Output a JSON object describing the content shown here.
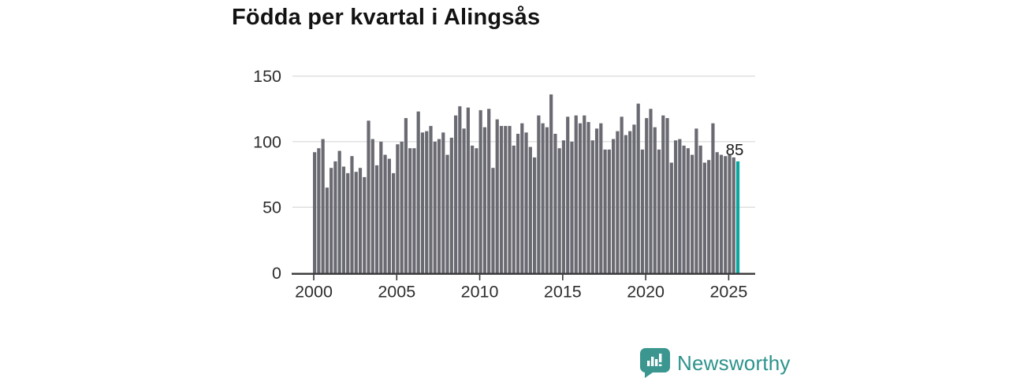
{
  "title": "Födda per kvartal i Alingsås",
  "annotation": {
    "last_value_label": "85"
  },
  "branding": {
    "name": "Newsworthy",
    "icon": "newsworthy-speech-bubble-chart-icon"
  },
  "colors": {
    "bar": "#6a6a72",
    "highlight": "#0aa7a0",
    "grid": "#dcdcdc",
    "axis": "#38383a",
    "tick_label": "#2e2e2e",
    "title": "#121212",
    "brand_bubble": "#3a968f",
    "brand_text": "#2d938c",
    "annotation_text": "#1a1a1a"
  },
  "chart_data": {
    "type": "bar",
    "title": "Födda per kvartal i Alingsås",
    "xlabel": "",
    "ylabel": "",
    "start_period": "2000-Q1",
    "end_period": "2025-Q3",
    "quarters_per_year": 4,
    "x_tick_years": [
      2000,
      2005,
      2010,
      2015,
      2020,
      2025
    ],
    "y_ticks": [
      0,
      50,
      100,
      150
    ],
    "ylim": [
      0,
      150
    ],
    "grid": "horizontal",
    "legend": "none",
    "highlight_last": true,
    "last_value_label": "85",
    "values": [
      92,
      95,
      102,
      65,
      80,
      85,
      93,
      81,
      76,
      89,
      77,
      80,
      73,
      116,
      102,
      82,
      100,
      90,
      87,
      76,
      98,
      100,
      118,
      95,
      95,
      123,
      107,
      108,
      112,
      100,
      102,
      107,
      90,
      103,
      120,
      127,
      110,
      126,
      97,
      95,
      124,
      111,
      125,
      80,
      117,
      112,
      112,
      112,
      97,
      106,
      114,
      107,
      96,
      88,
      120,
      114,
      111,
      136,
      106,
      95,
      101,
      119,
      100,
      120,
      114,
      120,
      115,
      101,
      110,
      114,
      94,
      94,
      102,
      108,
      119,
      105,
      108,
      113,
      129,
      94,
      118,
      125,
      111,
      94,
      120,
      118,
      84,
      101,
      102,
      97,
      95,
      90,
      110,
      97,
      84,
      86,
      114,
      92,
      90,
      89,
      90,
      88,
      85
    ]
  }
}
